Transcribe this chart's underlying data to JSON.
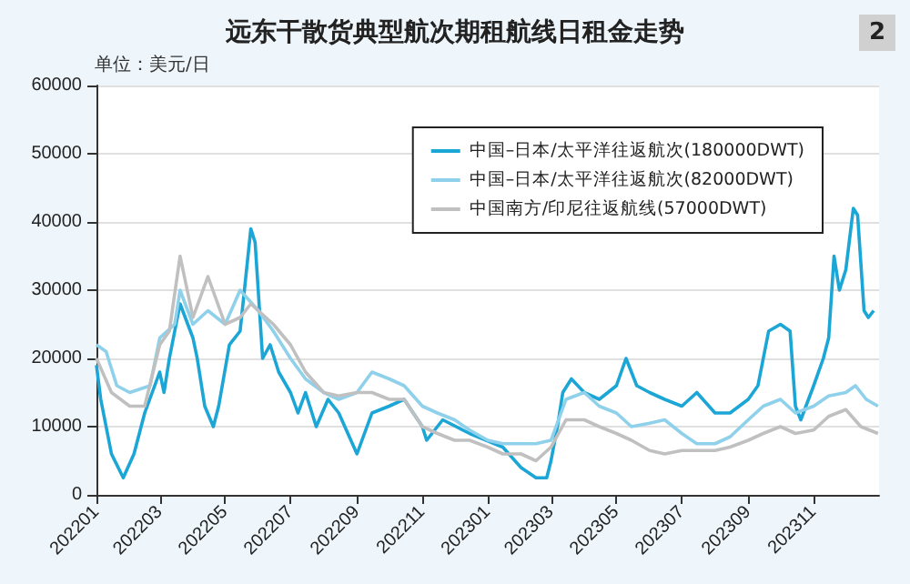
{
  "chart_data": {
    "type": "line",
    "title": "远东干散货典型航次期租航线日租金走势",
    "annotations": [
      "单位：美元/日",
      "2"
    ],
    "xlim": [
      "2022-01-01",
      "2024-01-01"
    ],
    "xticks": [
      {
        "value": "2022-01",
        "label": "202201"
      },
      {
        "value": "2022-03",
        "label": "202203"
      },
      {
        "value": "2022-05",
        "label": "202205"
      },
      {
        "value": "2022-07",
        "label": "202207"
      },
      {
        "value": "2022-09",
        "label": "202209"
      },
      {
        "value": "2022-11",
        "label": "202211"
      },
      {
        "value": "2023-01",
        "label": "202301"
      },
      {
        "value": "2023-03",
        "label": "202303"
      },
      {
        "value": "2023-05",
        "label": "202305"
      },
      {
        "value": "2023-07",
        "label": "202307"
      },
      {
        "value": "2023-09",
        "label": "202309"
      },
      {
        "value": "2023-11",
        "label": "202311"
      }
    ],
    "ylim": [
      0,
      60000
    ],
    "yticks": [
      0,
      10000,
      20000,
      30000,
      40000,
      50000,
      60000
    ],
    "grid": "y",
    "legend": "top right",
    "marker": "none",
    "line_style": "solid",
    "series": [
      {
        "name": "中国–日本/太平洋往返航次(180000DWT)",
        "color": "#1ba6d6",
        "x": [
          "2022-01-01",
          "2022-01-05",
          "2022-01-15",
          "2022-01-26",
          "2022-02-05",
          "2022-02-15",
          "2022-03-01",
          "2022-03-05",
          "2022-03-10",
          "2022-03-20",
          "2022-04-01",
          "2022-04-05",
          "2022-04-12",
          "2022-04-20",
          "2022-04-25",
          "2022-05-05",
          "2022-05-15",
          "2022-05-25",
          "2022-05-29",
          "2022-06-05",
          "2022-06-12",
          "2022-06-20",
          "2022-07-01",
          "2022-07-08",
          "2022-07-15",
          "2022-07-25",
          "2022-08-05",
          "2022-08-15",
          "2022-09-01",
          "2022-09-15",
          "2022-10-01",
          "2022-10-15",
          "2022-11-01",
          "2022-11-05",
          "2022-11-20",
          "2022-12-15",
          "2023-01-15",
          "2023-02-01",
          "2023-02-15",
          "2023-02-25",
          "2023-03-01",
          "2023-03-07",
          "2023-03-12",
          "2023-03-20",
          "2023-04-01",
          "2023-04-15",
          "2023-05-01",
          "2023-05-10",
          "2023-05-20",
          "2023-06-01",
          "2023-06-15",
          "2023-07-01",
          "2023-07-15",
          "2023-08-01",
          "2023-08-15",
          "2023-09-01",
          "2023-09-10",
          "2023-09-20",
          "2023-10-01",
          "2023-10-10",
          "2023-10-15",
          "2023-10-20",
          "2023-11-01",
          "2023-11-10",
          "2023-11-15",
          "2023-11-20",
          "2023-11-25",
          "2023-12-01",
          "2023-12-08",
          "2023-12-12",
          "2023-12-18",
          "2023-12-22",
          "2023-12-27"
        ],
        "values": [
          19000,
          14000,
          6000,
          2500,
          6000,
          12000,
          18000,
          15000,
          20000,
          28000,
          23000,
          20000,
          13000,
          10000,
          13000,
          22000,
          24000,
          39000,
          37000,
          20000,
          22000,
          18000,
          15000,
          12000,
          15000,
          10000,
          14000,
          12000,
          6000,
          12000,
          13000,
          14000,
          10000,
          8000,
          11000,
          9000,
          7000,
          4000,
          2500,
          2500,
          5000,
          10000,
          15000,
          17000,
          15000,
          14000,
          16000,
          20000,
          16000,
          15000,
          14000,
          13000,
          15000,
          12000,
          12000,
          14000,
          16000,
          24000,
          25000,
          24000,
          13000,
          11000,
          16000,
          20000,
          23000,
          35000,
          30000,
          33000,
          42000,
          41000,
          27000,
          26000,
          27000
        ]
      },
      {
        "name": "中国–日本/太平洋往返航次(82000DWT)",
        "color": "#8fd0ea",
        "x": [
          "2022-01-01",
          "2022-01-10",
          "2022-01-20",
          "2022-02-01",
          "2022-02-20",
          "2022-03-01",
          "2022-03-15",
          "2022-03-20",
          "2022-04-01",
          "2022-04-15",
          "2022-05-01",
          "2022-05-15",
          "2022-06-01",
          "2022-06-15",
          "2022-07-01",
          "2022-07-15",
          "2022-08-01",
          "2022-08-15",
          "2022-09-01",
          "2022-09-15",
          "2022-10-01",
          "2022-10-15",
          "2022-11-01",
          "2022-11-15",
          "2022-12-01",
          "2022-12-15",
          "2023-01-01",
          "2023-01-15",
          "2023-02-01",
          "2023-02-15",
          "2023-03-01",
          "2023-03-15",
          "2023-04-01",
          "2023-04-15",
          "2023-05-01",
          "2023-05-15",
          "2023-06-01",
          "2023-06-15",
          "2023-07-01",
          "2023-07-15",
          "2023-08-01",
          "2023-08-15",
          "2023-09-01",
          "2023-09-15",
          "2023-10-01",
          "2023-10-15",
          "2023-11-01",
          "2023-11-15",
          "2023-12-01",
          "2023-12-10",
          "2023-12-20",
          "2023-12-31"
        ],
        "values": [
          22000,
          21000,
          16000,
          15000,
          16000,
          23000,
          25000,
          30000,
          25000,
          27000,
          25000,
          30000,
          27000,
          24000,
          20000,
          17000,
          15000,
          14000,
          15000,
          18000,
          17000,
          16000,
          13000,
          12000,
          11000,
          9500,
          8000,
          7500,
          7500,
          7500,
          8000,
          14000,
          15000,
          13000,
          12000,
          10000,
          10500,
          11000,
          9000,
          7500,
          7500,
          8500,
          11000,
          13000,
          14000,
          12000,
          13000,
          14500,
          15000,
          16000,
          14000,
          13000
        ]
      },
      {
        "name": "中国南方/印尼往返航线(57000DWT)",
        "color": "#c0c0c0",
        "x": [
          "2022-01-01",
          "2022-01-15",
          "2022-02-01",
          "2022-02-15",
          "2022-03-01",
          "2022-03-10",
          "2022-03-20",
          "2022-04-01",
          "2022-04-15",
          "2022-05-01",
          "2022-05-15",
          "2022-05-25",
          "2022-06-01",
          "2022-06-15",
          "2022-07-01",
          "2022-07-15",
          "2022-08-01",
          "2022-08-15",
          "2022-09-01",
          "2022-09-15",
          "2022-10-01",
          "2022-10-15",
          "2022-11-01",
          "2022-11-15",
          "2022-12-01",
          "2022-12-15",
          "2023-01-01",
          "2023-01-15",
          "2023-02-01",
          "2023-02-15",
          "2023-03-01",
          "2023-03-15",
          "2023-04-01",
          "2023-04-15",
          "2023-05-01",
          "2023-05-15",
          "2023-06-01",
          "2023-06-15",
          "2023-07-01",
          "2023-07-15",
          "2023-08-01",
          "2023-08-15",
          "2023-09-01",
          "2023-09-15",
          "2023-10-01",
          "2023-10-15",
          "2023-11-01",
          "2023-11-15",
          "2023-12-01",
          "2023-12-15",
          "2023-12-31"
        ],
        "values": [
          20000,
          15000,
          13000,
          13000,
          22000,
          24000,
          35000,
          26000,
          32000,
          25000,
          26000,
          28000,
          27000,
          25000,
          22000,
          18000,
          15000,
          14500,
          15000,
          15000,
          14000,
          14000,
          10000,
          9000,
          8000,
          8000,
          7000,
          6000,
          6000,
          5000,
          7000,
          11000,
          11000,
          10000,
          9000,
          8000,
          6500,
          6000,
          6500,
          6500,
          6500,
          7000,
          8000,
          9000,
          10000,
          9000,
          9500,
          11500,
          12500,
          10000,
          9000
        ]
      }
    ]
  }
}
